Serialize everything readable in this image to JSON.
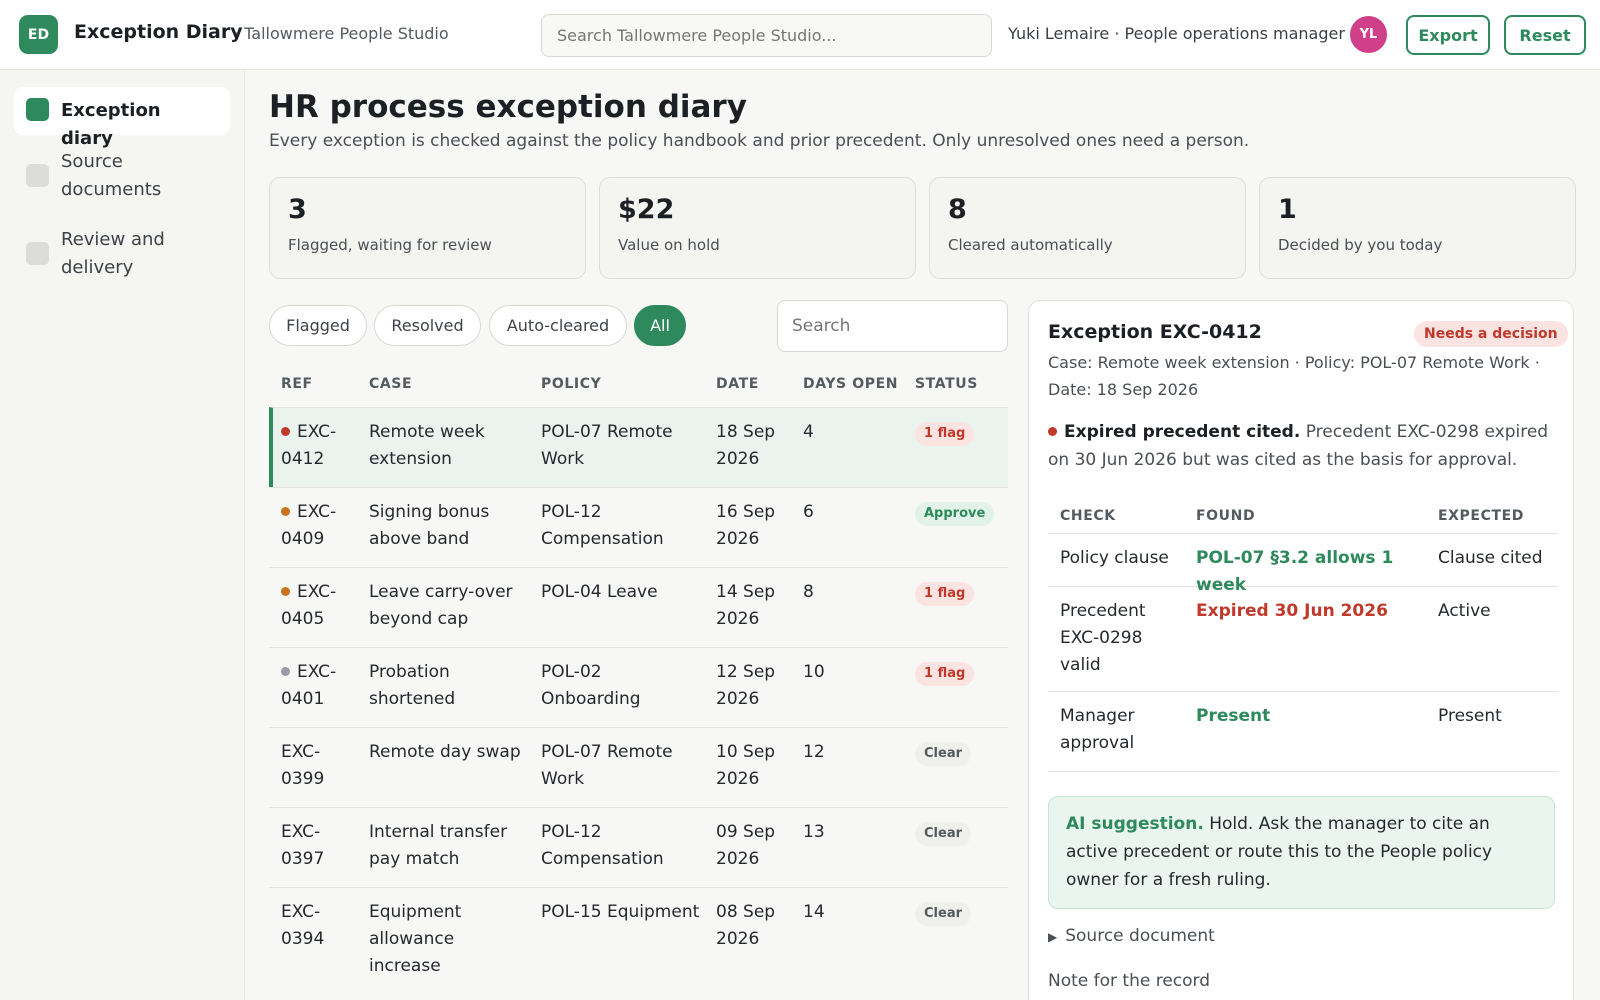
{
  "app": {
    "logo": "ED",
    "title": "Exception Diary",
    "org": "· Tallowmere People Studio",
    "search_placeholder": "Search Tallowmere People Studio...",
    "user": "Yuki Lemaire · People operations manager",
    "avatar": "YL",
    "export_label": "Export",
    "reset_label": "Reset"
  },
  "sidebar": {
    "items": [
      {
        "label": "Exception diary",
        "active": true
      },
      {
        "label": "Source documents",
        "active": false
      },
      {
        "label": "Review and delivery",
        "active": false
      }
    ]
  },
  "page": {
    "title": "HR process exception diary",
    "subtitle": "Every exception is checked against the policy handbook and prior precedent. Only unresolved ones need a person."
  },
  "stats": [
    {
      "value": "3",
      "caption": "Flagged, waiting for review"
    },
    {
      "value": "$22",
      "caption": "Value on hold"
    },
    {
      "value": "8",
      "caption": "Cleared automatically"
    },
    {
      "value": "1",
      "caption": "Decided by you today"
    }
  ],
  "filters": {
    "chips": [
      "Flagged",
      "Resolved",
      "Auto-cleared",
      "All"
    ],
    "active": "All",
    "search_placeholder": "Search"
  },
  "table": {
    "headers": [
      "REF",
      "CASE",
      "POLICY",
      "DATE",
      "DAYS OPEN",
      "STATUS"
    ],
    "rows": [
      {
        "ref": "EXC-0412",
        "case": "Remote week extension",
        "policy": "POL-07 Remote Work",
        "date": "18 Sep 2026",
        "days": "4",
        "status": "1 flag",
        "status_kind": "flag",
        "dot": "#c0392b"
      },
      {
        "ref": "EXC-0409",
        "case": "Signing bonus above band",
        "policy": "POL-12 Compensation",
        "date": "16 Sep 2026",
        "days": "6",
        "status": "Approve",
        "status_kind": "approve",
        "dot": "#c8731e"
      },
      {
        "ref": "EXC-0405",
        "case": "Leave carry-over beyond cap",
        "policy": "POL-04 Leave",
        "date": "14 Sep 2026",
        "days": "8",
        "status": "1 flag",
        "status_kind": "flag",
        "dot": "#c8731e"
      },
      {
        "ref": "EXC-0401",
        "case": "Probation shortened",
        "policy": "POL-02 Onboarding",
        "date": "12 Sep 2026",
        "days": "10",
        "status": "1 flag",
        "status_kind": "flag",
        "dot": "#9a9aa4"
      },
      {
        "ref": "EXC-0399",
        "case": "Remote day swap",
        "policy": "POL-07 Remote Work",
        "date": "10 Sep 2026",
        "days": "12",
        "status": "Clear",
        "status_kind": "clear",
        "dot": ""
      },
      {
        "ref": "EXC-0397",
        "case": "Internal transfer pay match",
        "policy": "POL-12 Compensation",
        "date": "09 Sep 2026",
        "days": "13",
        "status": "Clear",
        "status_kind": "clear",
        "dot": ""
      },
      {
        "ref": "EXC-0394",
        "case": "Equipment allowance increase",
        "policy": "POL-15 Equipment",
        "date": "08 Sep 2026",
        "days": "14",
        "status": "Clear",
        "status_kind": "clear",
        "dot": ""
      }
    ]
  },
  "detail": {
    "title": "Exception EXC-0412",
    "badge": "Needs a decision",
    "meta": "Case: Remote week extension · Policy: POL-07 Remote Work · Date: 18 Sep 2026",
    "warning_title": "Expired precedent cited.",
    "warning_text": "Precedent EXC-0298 expired on 30 Jun 2026 but was cited as the basis for approval.",
    "check_headers": [
      "CHECK",
      "FOUND",
      "EXPECTED"
    ],
    "checks": [
      {
        "check": "Policy clause",
        "found": "POL-07 §3.2 allows 1 week",
        "expected": "Clause cited",
        "found_color": "#2e8a5c"
      },
      {
        "check": "Precedent EXC-0298 valid",
        "found": "Expired 30 Jun 2026",
        "expected": "Active",
        "found_color": "#c0392b"
      },
      {
        "check": "Manager approval",
        "found": "Present",
        "expected": "Present",
        "found_color": "#2e8a5c"
      }
    ],
    "ai_label": "AI suggestion.",
    "ai_text": "Hold. Ask the manager to cite an active precedent or route this to the People policy owner for a fresh ruling.",
    "source_label": "Source document",
    "note_label": "Note for the record"
  }
}
